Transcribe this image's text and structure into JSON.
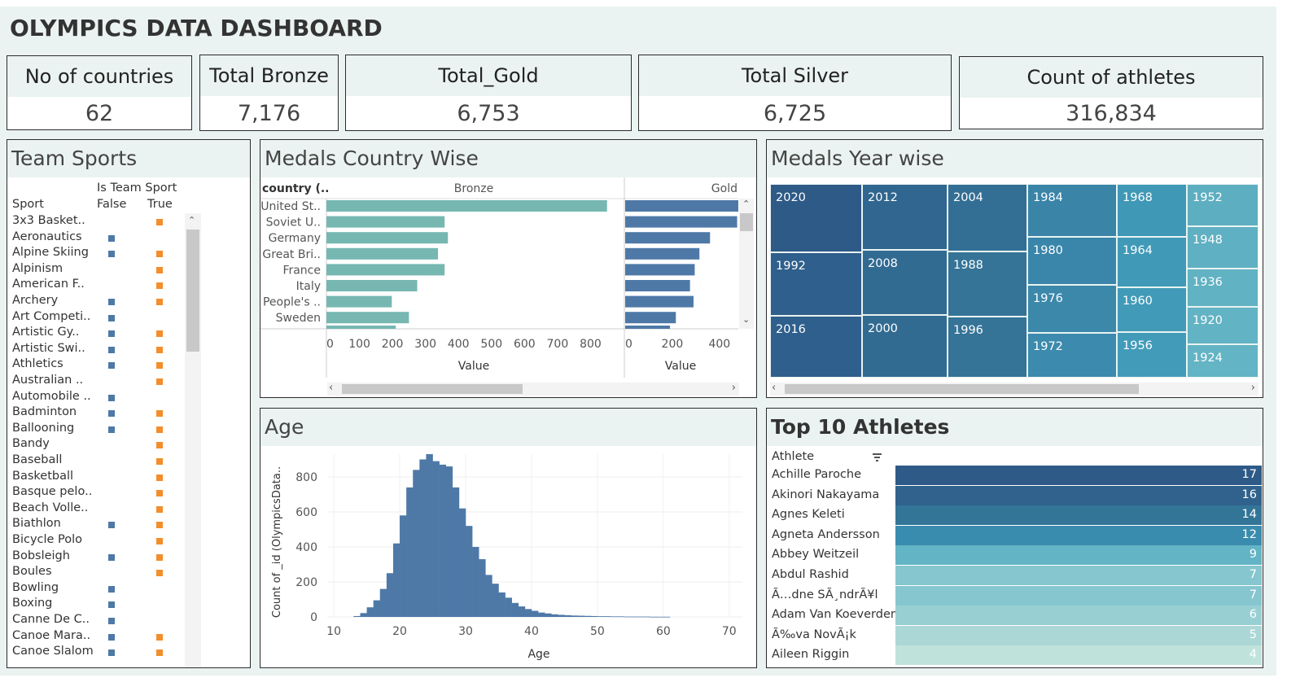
{
  "dashboard_title": "OLYMPICS DATA DASHBOARD",
  "kpis": [
    {
      "label": "No of countries",
      "value": "62"
    },
    {
      "label": "Total Bronze",
      "value": "7,176"
    },
    {
      "label": "Total_Gold",
      "value": "6,753"
    },
    {
      "label": "Total Silver",
      "value": "6,725"
    },
    {
      "label": "Count of athletes",
      "value": "316,834"
    }
  ],
  "team_sports": {
    "title": "Team Sports",
    "group_header": "Is Team Sport",
    "col_sport": "Sport",
    "col_false": "False",
    "col_true": "True",
    "legend_colors": {
      "false": "#4e79a7",
      "true": "#f28e2b"
    },
    "rows": [
      {
        "sport": "3x3 Basket..",
        "f": false,
        "t": true
      },
      {
        "sport": "Aeronautics",
        "f": true,
        "t": false
      },
      {
        "sport": "Alpine Skiing",
        "f": true,
        "t": true
      },
      {
        "sport": "Alpinism",
        "f": false,
        "t": true
      },
      {
        "sport": "American F..",
        "f": false,
        "t": true
      },
      {
        "sport": "Archery",
        "f": true,
        "t": true
      },
      {
        "sport": "Art Competi..",
        "f": true,
        "t": false
      },
      {
        "sport": "Artistic Gy..",
        "f": true,
        "t": true
      },
      {
        "sport": "Artistic Swi..",
        "f": true,
        "t": true
      },
      {
        "sport": "Athletics",
        "f": true,
        "t": true
      },
      {
        "sport": "Australian ..",
        "f": false,
        "t": true
      },
      {
        "sport": "Automobile ..",
        "f": true,
        "t": false
      },
      {
        "sport": "Badminton",
        "f": true,
        "t": true
      },
      {
        "sport": "Ballooning",
        "f": true,
        "t": true
      },
      {
        "sport": "Bandy",
        "f": false,
        "t": true
      },
      {
        "sport": "Baseball",
        "f": false,
        "t": true
      },
      {
        "sport": "Basketball",
        "f": false,
        "t": true
      },
      {
        "sport": "Basque pelo..",
        "f": false,
        "t": true
      },
      {
        "sport": "Beach Volle..",
        "f": false,
        "t": true
      },
      {
        "sport": "Biathlon",
        "f": true,
        "t": true
      },
      {
        "sport": "Bicycle Polo",
        "f": false,
        "t": true
      },
      {
        "sport": "Bobsleigh",
        "f": true,
        "t": true
      },
      {
        "sport": "Boules",
        "f": false,
        "t": true
      },
      {
        "sport": "Bowling",
        "f": true,
        "t": false
      },
      {
        "sport": "Boxing",
        "f": true,
        "t": false
      },
      {
        "sport": "Canne De C..",
        "f": true,
        "t": false
      },
      {
        "sport": "Canoe Mara..",
        "f": true,
        "t": true
      },
      {
        "sport": "Canoe Slalom",
        "f": true,
        "t": true
      }
    ]
  },
  "medals_country": {
    "title": "Medals Country Wise",
    "country_header": "country (..",
    "col1": "Bronze",
    "col2": "Gold",
    "xlabel": "Value",
    "colors": {
      "bronze": "#76b7b2",
      "gold": "#4e79a7"
    }
  },
  "medals_year": {
    "title": "Medals Year wise"
  },
  "age": {
    "title": "Age",
    "xlabel": "Age",
    "ylabel": "Count of _id (OlympicsData..",
    "bar_color": "#4e79a7"
  },
  "top_athletes": {
    "title": "Top 10 Athletes",
    "col_header": "Athlete"
  },
  "chart_data": [
    {
      "type": "bar",
      "orientation": "horizontal",
      "categories": [
        "United St..",
        "Soviet U..",
        "Germany",
        "Great Bri..",
        "France",
        "Italy",
        "People's ..",
        "Sweden"
      ],
      "series": [
        {
          "name": "Bronze",
          "values": [
            850,
            358,
            368,
            338,
            358,
            275,
            198,
            250
          ]
        },
        {
          "name": "Gold",
          "values": [
            485,
            475,
            360,
            315,
            295,
            275,
            290,
            215
          ]
        }
      ],
      "xlim_bronze": [
        0,
        900
      ],
      "xlim_gold": [
        0,
        480
      ],
      "xticks_bronze": [
        0,
        100,
        200,
        300,
        400,
        500,
        600,
        700,
        800
      ],
      "xticks_gold": [
        0,
        200,
        400
      ],
      "xlabel": "Value"
    },
    {
      "type": "heatmap",
      "subtype": "treemap",
      "columns": [
        {
          "x0": 0,
          "x1": 113,
          "cells": [
            {
              "label": "2020",
              "h": 84,
              "color": "#2e5a87"
            },
            {
              "label": "1992",
              "h": 78,
              "color": "#2f5f8c"
            },
            {
              "label": "2016",
              "h": 76,
              "color": "#2f5f8c"
            }
          ]
        },
        {
          "x0": 113,
          "x1": 218,
          "cells": [
            {
              "label": "2012",
              "h": 81,
              "color": "#30668f"
            },
            {
              "label": "2008",
              "h": 80,
              "color": "#326b92"
            },
            {
              "label": "2000",
              "h": 77,
              "color": "#326b92"
            }
          ]
        },
        {
          "x0": 218,
          "x1": 316,
          "cells": [
            {
              "label": "2004",
              "h": 83,
              "color": "#336f95"
            },
            {
              "label": "1988",
              "h": 80,
              "color": "#357497"
            },
            {
              "label": "1996",
              "h": 75,
              "color": "#357497"
            }
          ]
        },
        {
          "x0": 316,
          "x1": 426,
          "cells": [
            {
              "label": "1984",
              "h": 65,
              "color": "#3a84a8"
            },
            {
              "label": "1980",
              "h": 59,
              "color": "#3a86aa"
            },
            {
              "label": "1976",
              "h": 59,
              "color": "#3b88ab"
            },
            {
              "label": "1972",
              "h": 55,
              "color": "#3c8aad"
            }
          ]
        },
        {
          "x0": 426,
          "x1": 512,
          "cells": [
            {
              "label": "1968",
              "h": 65,
              "color": "#3f98b6"
            },
            {
              "label": "1964",
              "h": 62,
              "color": "#4099b7"
            },
            {
              "label": "1960",
              "h": 55,
              "color": "#419bb8"
            },
            {
              "label": "1956",
              "h": 56,
              "color": "#429cb9"
            }
          ]
        },
        {
          "x0": 512,
          "x1": 600,
          "cells": [
            {
              "label": "1952",
              "h": 52,
              "color": "#5eaec1"
            },
            {
              "label": "1948",
              "h": 52,
              "color": "#5fb0c2"
            },
            {
              "label": "1936",
              "h": 47,
              "color": "#61b2c3"
            },
            {
              "label": "1920",
              "h": 46,
              "color": "#62b3c4"
            },
            {
              "label": "1924",
              "h": 41,
              "color": "#63b4c5"
            }
          ]
        }
      ]
    },
    {
      "type": "bar",
      "subtype": "histogram",
      "xlabel": "Age",
      "ylabel": "Count of _id (OlympicsData..",
      "xticks": [
        10,
        20,
        30,
        40,
        50,
        60,
        70
      ],
      "yticks": [
        0,
        200,
        400,
        600,
        800
      ],
      "xlim": [
        9,
        72
      ],
      "ylim": [
        0,
        930
      ],
      "bins": [
        {
          "x": 13,
          "y": 5
        },
        {
          "x": 14,
          "y": 22
        },
        {
          "x": 15,
          "y": 55
        },
        {
          "x": 16,
          "y": 95
        },
        {
          "x": 17,
          "y": 160
        },
        {
          "x": 18,
          "y": 250
        },
        {
          "x": 19,
          "y": 420
        },
        {
          "x": 20,
          "y": 580
        },
        {
          "x": 21,
          "y": 740
        },
        {
          "x": 22,
          "y": 840
        },
        {
          "x": 23,
          "y": 900
        },
        {
          "x": 24,
          "y": 930
        },
        {
          "x": 25,
          "y": 890
        },
        {
          "x": 26,
          "y": 870
        },
        {
          "x": 27,
          "y": 860
        },
        {
          "x": 28,
          "y": 740
        },
        {
          "x": 29,
          "y": 620
        },
        {
          "x": 30,
          "y": 520
        },
        {
          "x": 31,
          "y": 400
        },
        {
          "x": 32,
          "y": 330
        },
        {
          "x": 33,
          "y": 240
        },
        {
          "x": 34,
          "y": 190
        },
        {
          "x": 35,
          "y": 140
        },
        {
          "x": 36,
          "y": 110
        },
        {
          "x": 37,
          "y": 80
        },
        {
          "x": 38,
          "y": 60
        },
        {
          "x": 39,
          "y": 45
        },
        {
          "x": 40,
          "y": 35
        },
        {
          "x": 41,
          "y": 25
        },
        {
          "x": 42,
          "y": 20
        },
        {
          "x": 43,
          "y": 15
        },
        {
          "x": 44,
          "y": 12
        },
        {
          "x": 45,
          "y": 10
        },
        {
          "x": 46,
          "y": 8
        },
        {
          "x": 47,
          "y": 7
        },
        {
          "x": 48,
          "y": 6
        },
        {
          "x": 49,
          "y": 5
        },
        {
          "x": 50,
          "y": 4
        },
        {
          "x": 51,
          "y": 4
        },
        {
          "x": 52,
          "y": 3
        },
        {
          "x": 53,
          "y": 3
        },
        {
          "x": 54,
          "y": 2
        },
        {
          "x": 55,
          "y": 2
        },
        {
          "x": 56,
          "y": 2
        },
        {
          "x": 57,
          "y": 2
        },
        {
          "x": 58,
          "y": 1
        },
        {
          "x": 59,
          "y": 1
        },
        {
          "x": 60,
          "y": 1
        }
      ]
    },
    {
      "type": "table",
      "rows": [
        {
          "athlete": "Achille Paroche",
          "value": 17,
          "color": "#2e5a87"
        },
        {
          "athlete": "Akinori Nakayama",
          "value": 16,
          "color": "#30628d"
        },
        {
          "athlete": "Agnes Keleti",
          "value": 14,
          "color": "#337597"
        },
        {
          "athlete": "Agneta Andersson",
          "value": 12,
          "color": "#3a8cae"
        },
        {
          "athlete": "Abbey Weitzeil",
          "value": 9,
          "color": "#63b4c5"
        },
        {
          "athlete": "Abdul Rashid",
          "value": 7,
          "color": "#86c6cf"
        },
        {
          "athlete": "Ã…dne SÃ¸ndrÃ¥l",
          "value": 7,
          "color": "#86c6cf"
        },
        {
          "athlete": "Adam Van Koeverden",
          "value": 6,
          "color": "#98cfd3"
        },
        {
          "athlete": "Ã‰va NovÃ¡k",
          "value": 5,
          "color": "#abd8d6"
        },
        {
          "athlete": "Aileen Riggin",
          "value": 4,
          "color": "#bfe3da"
        }
      ]
    }
  ]
}
